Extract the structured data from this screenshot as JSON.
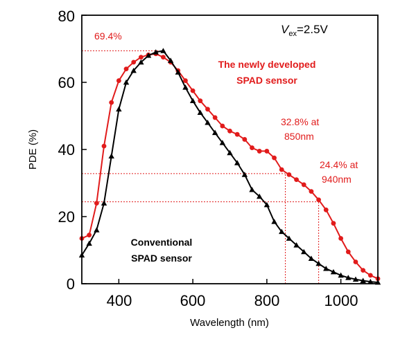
{
  "chart_data": {
    "type": "line",
    "xlabel": "Wavelength (nm)",
    "ylabel": "PDE (%)",
    "xlim": [
      300,
      1100
    ],
    "ylim": [
      0,
      80
    ],
    "x_ticks": [
      400,
      600,
      800,
      1000
    ],
    "y_ticks": [
      0,
      20,
      40,
      60,
      80
    ],
    "x_tick_labels": [
      "400",
      "600",
      "800",
      "1000"
    ],
    "y_tick_labels": [
      "0",
      "20",
      "40",
      "60",
      "80"
    ],
    "grid": false,
    "series": [
      {
        "name": "The newly developed SPAD sensor",
        "label_line1": "The newly developed",
        "label_line2": "SPAD sensor",
        "color": "#e11b1b",
        "marker": "circle",
        "x": [
          300,
          320,
          340,
          360,
          380,
          400,
          420,
          440,
          460,
          480,
          500,
          520,
          540,
          560,
          580,
          600,
          620,
          640,
          660,
          680,
          700,
          720,
          740,
          760,
          780,
          800,
          820,
          840,
          860,
          880,
          900,
          920,
          940,
          960,
          980,
          1000,
          1020,
          1040,
          1060,
          1080,
          1100
        ],
        "y": [
          13.5,
          14.5,
          24,
          41,
          54,
          60.5,
          64,
          66,
          67.5,
          68.2,
          68.5,
          67.5,
          66,
          63.5,
          60.5,
          57.5,
          54.5,
          52,
          49.5,
          47,
          45.5,
          44.5,
          43,
          40.5,
          39.5,
          39.5,
          37.5,
          34,
          32.5,
          31,
          29.5,
          27.5,
          25,
          22,
          18,
          13.5,
          9.5,
          6.5,
          4,
          2.5,
          1.5
        ]
      },
      {
        "name": "Conventional SPAD sensor",
        "label_line1": "Conventional",
        "label_line2": "SPAD sensor",
        "color": "#000000",
        "marker": "triangle",
        "x": [
          300,
          320,
          340,
          360,
          380,
          400,
          420,
          440,
          460,
          480,
          500,
          520,
          540,
          560,
          580,
          600,
          620,
          640,
          660,
          680,
          700,
          720,
          740,
          760,
          780,
          800,
          820,
          840,
          860,
          880,
          900,
          920,
          940,
          960,
          980,
          1000,
          1020,
          1040,
          1060,
          1080,
          1100
        ],
        "y": [
          8.5,
          12,
          16,
          24,
          38,
          52,
          60,
          63.5,
          66,
          68,
          69,
          69.4,
          66.5,
          63,
          58.5,
          54.5,
          51,
          48,
          45,
          42,
          39,
          36,
          32.5,
          28,
          26,
          23.5,
          18.5,
          15.5,
          13.5,
          11.5,
          9.5,
          7.5,
          6,
          4.5,
          3.5,
          2.5,
          1.8,
          1.3,
          0.9,
          0.6,
          0.4
        ]
      }
    ],
    "annotations": {
      "peak": "69.4%",
      "at850_line1": "32.8% at",
      "at850_line2": "850nm",
      "at940_line1": "24.4% at",
      "at940_line2": "940nm"
    },
    "reference_lines": [
      {
        "y": 69.4,
        "x_end": 510
      },
      {
        "y": 32.8,
        "x_end": 850
      },
      {
        "y": 24.4,
        "x_end": 940
      },
      {
        "x": 850,
        "y_end": 32.8
      },
      {
        "x": 940,
        "y_end": 24.4
      }
    ],
    "condition_symbol": "V",
    "condition_subscript": "ex",
    "condition_value": "=2.5V"
  }
}
